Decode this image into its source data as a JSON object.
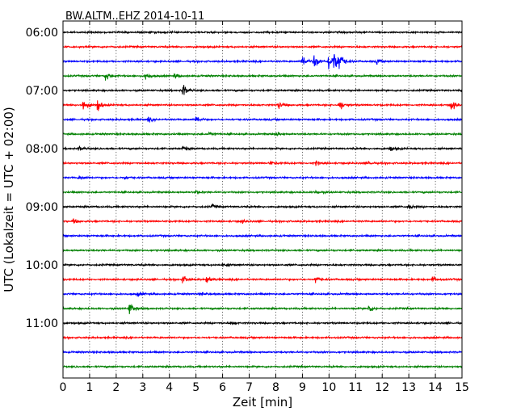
{
  "chart_data": {
    "type": "line",
    "title": "BW.ALTM..EHZ 2014-10-11",
    "xlabel": "Zeit  [min]",
    "ylabel": "UTC (Lokalzeit = UTC + 02:00)",
    "xlim": [
      0,
      15
    ],
    "x_ticks": [
      "0",
      "1",
      "2",
      "3",
      "4",
      "5",
      "6",
      "7",
      "8",
      "9",
      "10",
      "11",
      "12",
      "13",
      "14",
      "15"
    ],
    "y_ticks": [
      "06:00",
      "07:00",
      "08:00",
      "09:00",
      "10:00",
      "11:00"
    ],
    "grid": true,
    "colors": [
      "#000000",
      "#ff0000",
      "#0000ff",
      "#008000"
    ],
    "series": [
      {
        "start": "06:00",
        "color": "#000000",
        "events": []
      },
      {
        "start": "06:15",
        "color": "#ff0000",
        "events": []
      },
      {
        "start": "06:30",
        "color": "#0000ff",
        "events": [
          {
            "t": 9.0,
            "amp": 1.0
          },
          {
            "t": 9.45,
            "amp": 1.1
          },
          {
            "t": 10.0,
            "amp": 1.4
          },
          {
            "t": 10.2,
            "amp": 1.5
          },
          {
            "t": 10.4,
            "amp": 1.2
          },
          {
            "t": 11.8,
            "amp": 0.3
          }
        ]
      },
      {
        "start": "06:45",
        "color": "#008000",
        "events": [
          {
            "t": 1.6,
            "amp": 0.7
          },
          {
            "t": 3.1,
            "amp": 0.5
          },
          {
            "t": 4.2,
            "amp": 0.3
          }
        ]
      },
      {
        "start": "07:00",
        "color": "#000000",
        "events": [
          {
            "t": 4.5,
            "amp": 1.0
          }
        ]
      },
      {
        "start": "07:15",
        "color": "#ff0000",
        "events": [
          {
            "t": 0.75,
            "amp": 0.9
          },
          {
            "t": 1.3,
            "amp": 0.9
          },
          {
            "t": 8.1,
            "amp": 0.5
          },
          {
            "t": 10.4,
            "amp": 0.8
          },
          {
            "t": 14.6,
            "amp": 0.8
          }
        ]
      },
      {
        "start": "07:30",
        "color": "#0000ff",
        "events": [
          {
            "t": 3.2,
            "amp": 0.3
          },
          {
            "t": 5.0,
            "amp": 0.6
          }
        ]
      },
      {
        "start": "07:45",
        "color": "#008000",
        "events": [
          {
            "t": 5.5,
            "amp": 0.3
          },
          {
            "t": 8.0,
            "amp": 0.3
          }
        ]
      },
      {
        "start": "08:00",
        "color": "#000000",
        "events": [
          {
            "t": 0.6,
            "amp": 0.4
          },
          {
            "t": 4.5,
            "amp": 0.3
          },
          {
            "t": 12.3,
            "amp": 0.35
          }
        ]
      },
      {
        "start": "08:15",
        "color": "#ff0000",
        "events": [
          {
            "t": 7.8,
            "amp": 0.3
          },
          {
            "t": 9.5,
            "amp": 0.3
          },
          {
            "t": 11.5,
            "amp": 0.25
          }
        ]
      },
      {
        "start": "08:30",
        "color": "#0000ff",
        "events": [
          {
            "t": 0.6,
            "amp": 0.3
          },
          {
            "t": 2.3,
            "amp": 0.25
          }
        ]
      },
      {
        "start": "08:45",
        "color": "#008000",
        "events": [
          {
            "t": 5.0,
            "amp": 0.25
          },
          {
            "t": 9.5,
            "amp": 0.25
          }
        ]
      },
      {
        "start": "09:00",
        "color": "#000000",
        "events": [
          {
            "t": 5.6,
            "amp": 0.3
          },
          {
            "t": 13.0,
            "amp": 0.35
          }
        ]
      },
      {
        "start": "09:15",
        "color": "#ff0000",
        "events": [
          {
            "t": 0.4,
            "amp": 0.3
          },
          {
            "t": 6.7,
            "amp": 0.25
          }
        ]
      },
      {
        "start": "09:30",
        "color": "#0000ff",
        "events": []
      },
      {
        "start": "09:45",
        "color": "#008000",
        "events": []
      },
      {
        "start": "10:00",
        "color": "#000000",
        "events": [
          {
            "t": 6.0,
            "amp": 0.25
          }
        ]
      },
      {
        "start": "10:15",
        "color": "#ff0000",
        "events": [
          {
            "t": 4.5,
            "amp": 0.5
          },
          {
            "t": 5.4,
            "amp": 0.6
          },
          {
            "t": 9.5,
            "amp": 0.55
          },
          {
            "t": 13.9,
            "amp": 0.4
          }
        ]
      },
      {
        "start": "10:30",
        "color": "#0000ff",
        "events": [
          {
            "t": 2.8,
            "amp": 0.3
          },
          {
            "t": 5.2,
            "amp": 0.25
          }
        ]
      },
      {
        "start": "10:45",
        "color": "#008000",
        "events": [
          {
            "t": 2.5,
            "amp": 0.8
          },
          {
            "t": 11.5,
            "amp": 0.6
          }
        ]
      },
      {
        "start": "11:00",
        "color": "#000000",
        "events": [
          {
            "t": 6.3,
            "amp": 0.25
          }
        ]
      },
      {
        "start": "11:15",
        "color": "#ff0000",
        "events": []
      },
      {
        "start": "11:30",
        "color": "#0000ff",
        "events": []
      },
      {
        "start": "11:45",
        "color": "#008000",
        "events": []
      }
    ]
  }
}
